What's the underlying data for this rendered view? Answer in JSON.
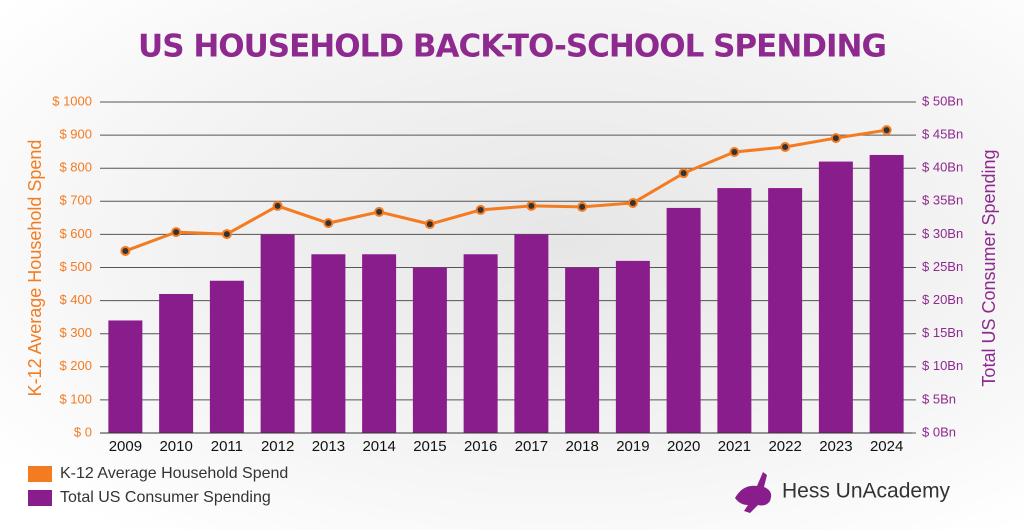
{
  "chart_data": {
    "type": "bar",
    "title": "US HOUSEHOLD BACK-TO-SCHOOL SPENDING",
    "y_label": "K-12 Average Household Spend",
    "y2_label": "Total US Consumer Spending",
    "brand": "Hess UnAcademy",
    "categories": [
      "2009",
      "2010",
      "2011",
      "2012",
      "2013",
      "2014",
      "2015",
      "2016",
      "2017",
      "2018",
      "2019",
      "2020",
      "2021",
      "2022",
      "2023",
      "2024"
    ],
    "series": [
      {
        "name": "K-12 Average Household Spend",
        "type": "line",
        "color": "#f47b20",
        "values": [
          550,
          607,
          601,
          686,
          634,
          668,
          631,
          674,
          686,
          683,
          695,
          785,
          849,
          864,
          891,
          915
        ]
      },
      {
        "name": "Total US Consumer Spending",
        "type": "bar",
        "axis": "y2",
        "color": "#8a1d8c",
        "values": [
          17,
          21,
          23,
          30,
          27,
          27,
          25,
          27,
          30,
          25,
          26,
          34,
          37,
          37,
          41,
          42
        ]
      }
    ],
    "ylim": [
      0,
      1000
    ],
    "yticks": [
      {
        "value": 0,
        "label": "$ 0"
      },
      {
        "value": 100,
        "label": "$ 100"
      },
      {
        "value": 200,
        "label": "$ 200"
      },
      {
        "value": 300,
        "label": "$ 300"
      },
      {
        "value": 400,
        "label": "$ 400"
      },
      {
        "value": 500,
        "label": "$ 500"
      },
      {
        "value": 600,
        "label": "$ 600"
      },
      {
        "value": 700,
        "label": "$ 700"
      },
      {
        "value": 800,
        "label": "$ 800"
      },
      {
        "value": 900,
        "label": "$ 900"
      },
      {
        "value": 1000,
        "label": "$ 1000"
      }
    ],
    "y2lim": [
      0,
      50
    ],
    "y2ticks": [
      {
        "value": 0,
        "label": "$ 0Bn"
      },
      {
        "value": 5,
        "label": "$ 5Bn"
      },
      {
        "value": 10,
        "label": "$ 10Bn"
      },
      {
        "value": 15,
        "label": "$ 15Bn"
      },
      {
        "value": 20,
        "label": "$ 20Bn"
      },
      {
        "value": 25,
        "label": "$ 25Bn"
      },
      {
        "value": 30,
        "label": "$ 30Bn"
      },
      {
        "value": 35,
        "label": "$ 35Bn"
      },
      {
        "value": 40,
        "label": "$ 40Bn"
      },
      {
        "value": 45,
        "label": "$ 45Bn"
      },
      {
        "value": 50,
        "label": "$ 50Bn"
      }
    ],
    "grid": true
  }
}
